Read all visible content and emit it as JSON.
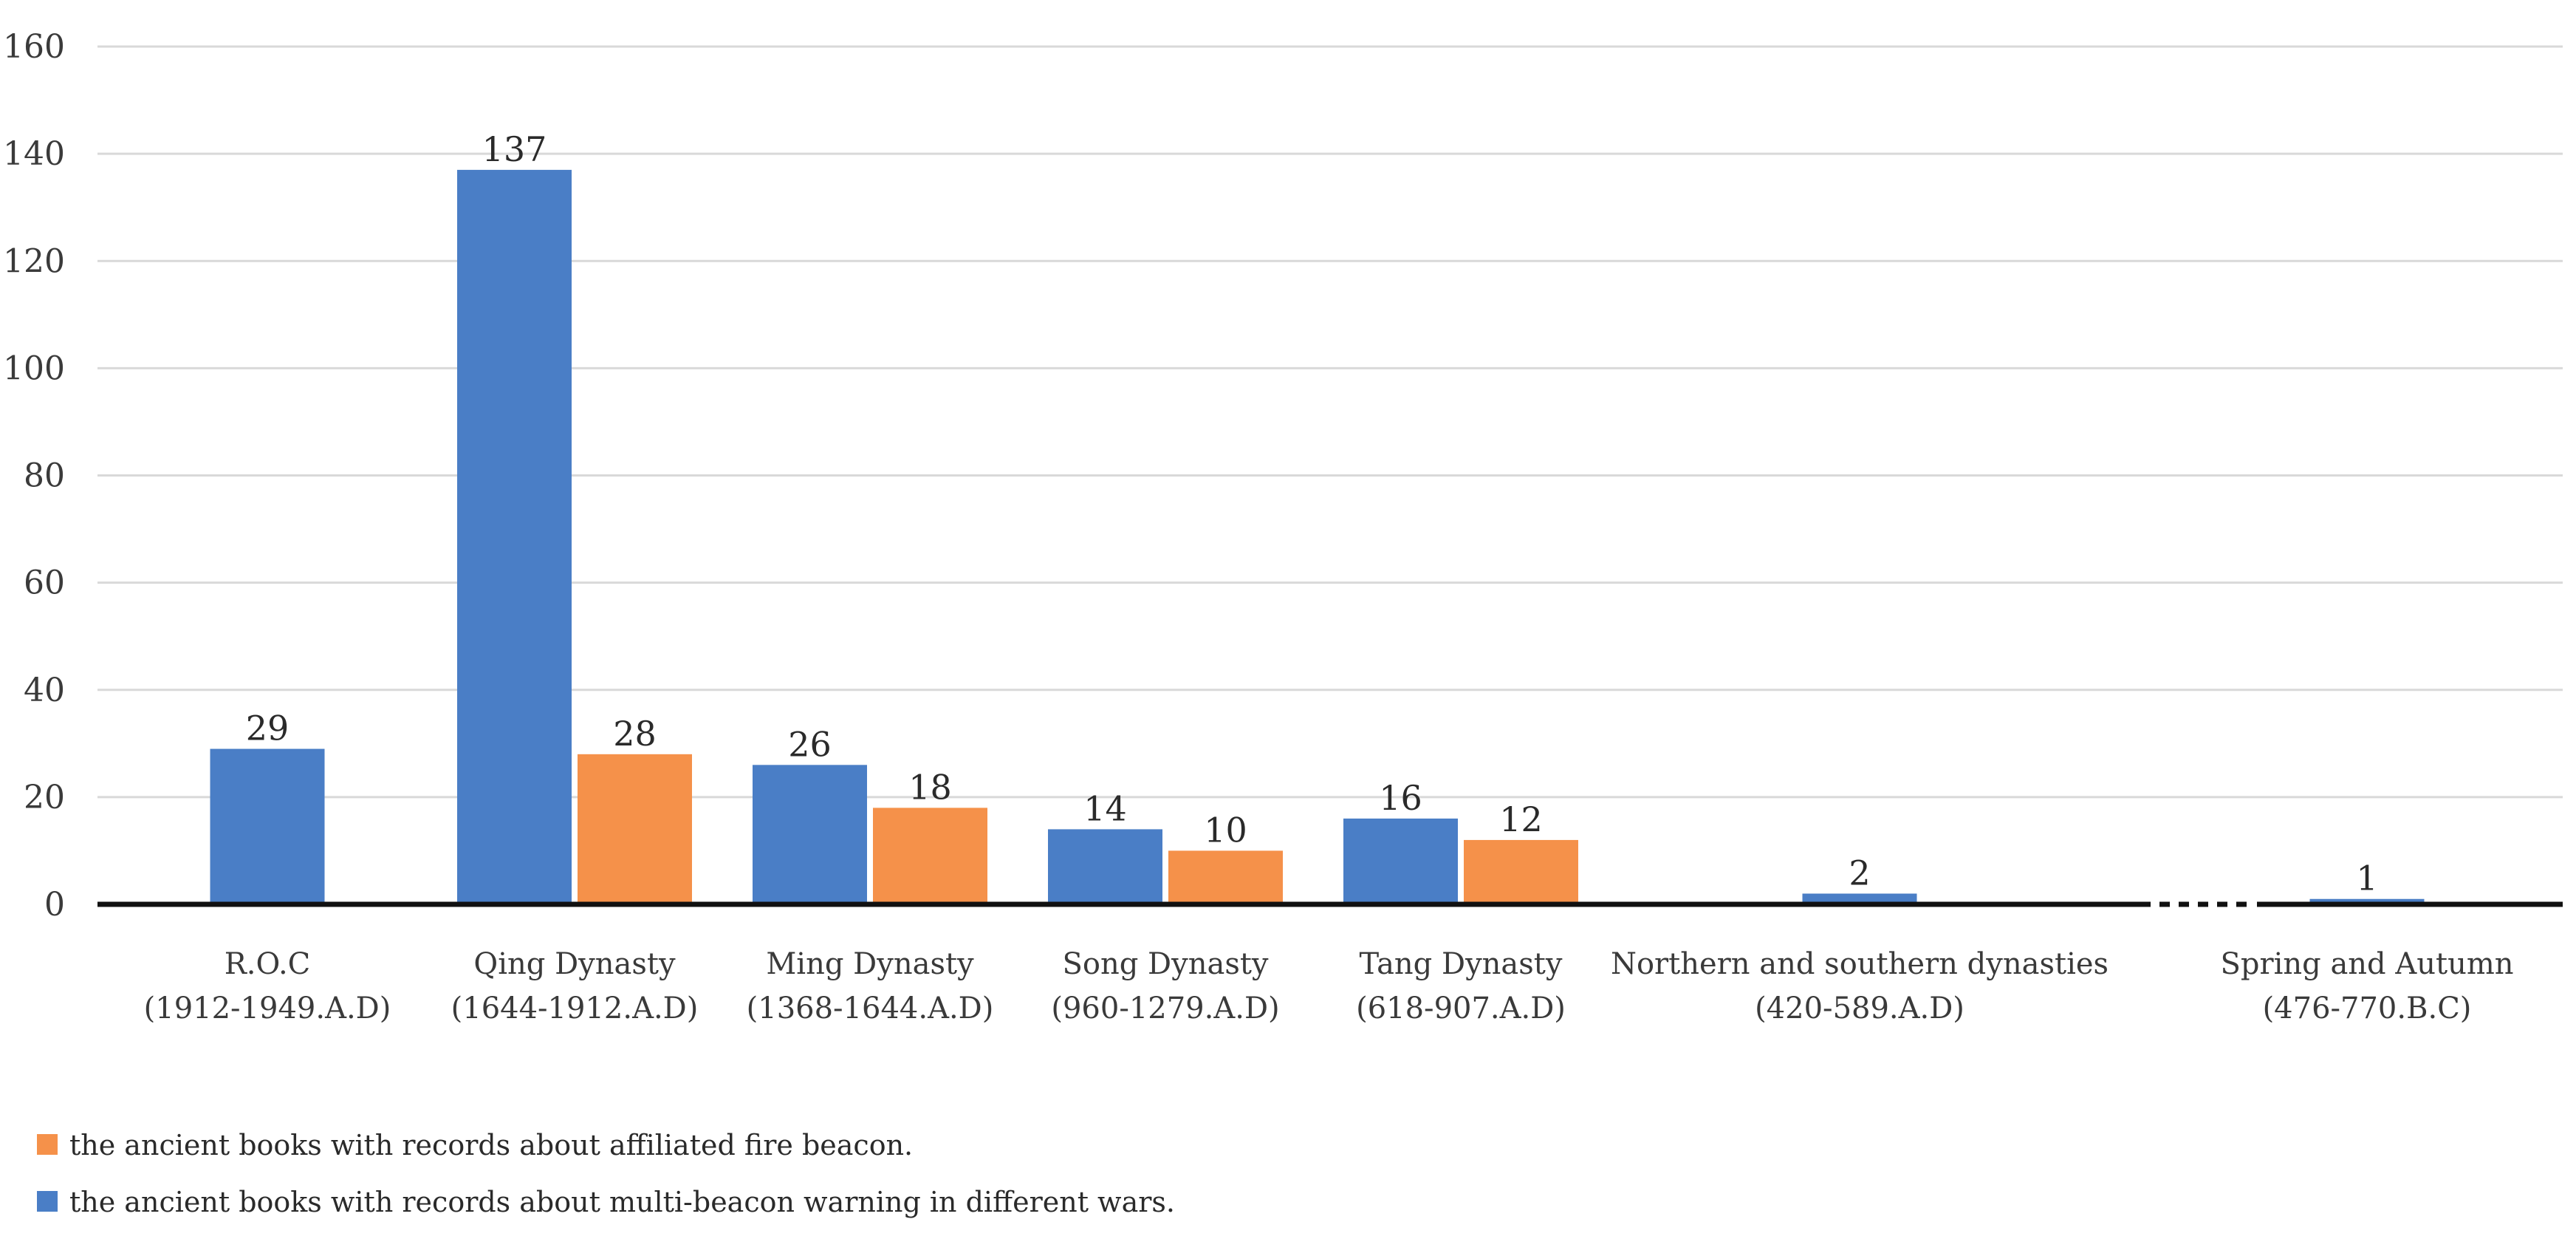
{
  "chart_data": {
    "type": "bar",
    "title": "",
    "xlabel": "",
    "ylabel": "",
    "ylim": [
      0,
      160
    ],
    "yticks": [
      0,
      20,
      40,
      60,
      80,
      100,
      120,
      140,
      160
    ],
    "grid": true,
    "legend_position": "bottom-left",
    "categories": [
      {
        "name": "R.O.C",
        "range": "(1912-1949.A.D)"
      },
      {
        "name": "Qing Dynasty",
        "range": "(1644-1912.A.D)"
      },
      {
        "name": "Ming Dynasty",
        "range": "(1368-1644.A.D)"
      },
      {
        "name": "Song Dynasty",
        "range": "(960-1279.A.D)"
      },
      {
        "name": "Tang Dynasty",
        "range": "(618-907.A.D)"
      },
      {
        "name": "Northern and southern dynasties",
        "range": "(420-589.A.D)"
      },
      {
        "name": "Spring and Autumn",
        "range": "(476-770.B.C)"
      }
    ],
    "series": [
      {
        "name": "the ancient books with records about multi-beacon warning in different wars.",
        "color": "#4a7ec6",
        "values": [
          29,
          137,
          26,
          14,
          16,
          2,
          1
        ]
      },
      {
        "name": "the ancient books with records about affiliated fire beacon.",
        "color": "#f5914a",
        "values": [
          null,
          28,
          18,
          10,
          12,
          null,
          null
        ]
      }
    ],
    "legend": [
      {
        "label": "the ancient books with records about affiliated fire beacon.",
        "color": "#f5914a"
      },
      {
        "label": "the ancient books with records about multi-beacon warning in different wars.",
        "color": "#4a7ec6"
      }
    ],
    "axis_break": "between Northern and southern dynasties and Spring and Autumn"
  }
}
